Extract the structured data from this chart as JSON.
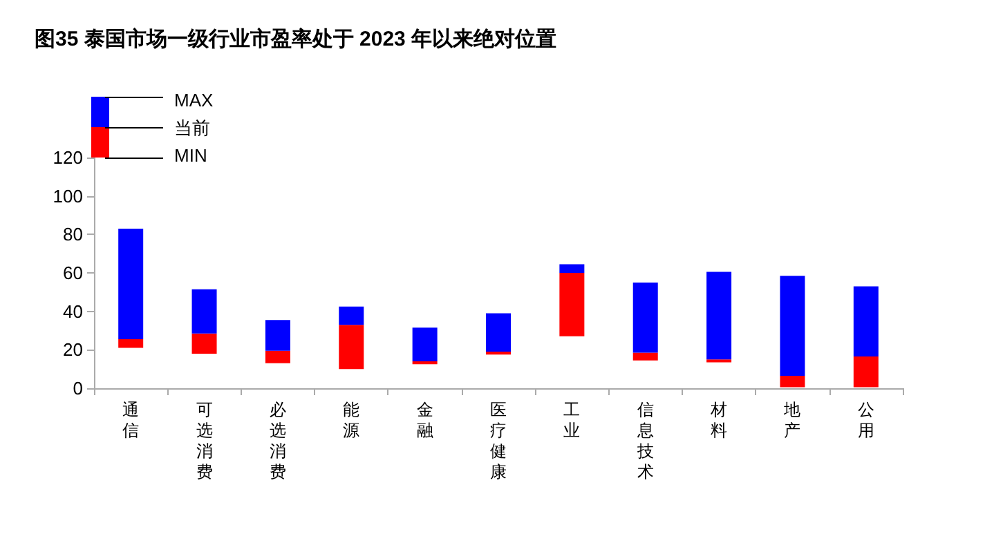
{
  "chart_data": {
    "type": "bar",
    "title": "图35 泰国市场一级行业市盈率处于 2023 年以来绝对位置",
    "categories": [
      "通信",
      "可选消费",
      "必选消费",
      "能源",
      "金融",
      "医疗健康",
      "工业",
      "信息技术",
      "材料",
      "地产",
      "公用"
    ],
    "series": [
      {
        "color": "#ff0000",
        "base": [
          21,
          18,
          13,
          10,
          12.5,
          17.5,
          27,
          14.5,
          13.5,
          0.5,
          0.5
        ],
        "values": [
          4.5,
          10.5,
          6.5,
          23,
          1.5,
          1.5,
          33,
          4,
          1.5,
          6,
          16
        ]
      },
      {
        "color": "#0000ff",
        "base": [
          25.5,
          28.5,
          19.5,
          33,
          14,
          19,
          60,
          18.5,
          15,
          6.5,
          16.5
        ],
        "values": [
          57.5,
          23,
          16,
          9.5,
          17.5,
          20,
          4.5,
          36.5,
          45.5,
          52,
          36.5
        ]
      }
    ],
    "annotations": [
      "MAX",
      "当前",
      "MIN"
    ],
    "ylim": [
      0,
      120
    ],
    "yticks": [
      0,
      20,
      40,
      60,
      80,
      100,
      120
    ],
    "grid": false
  }
}
